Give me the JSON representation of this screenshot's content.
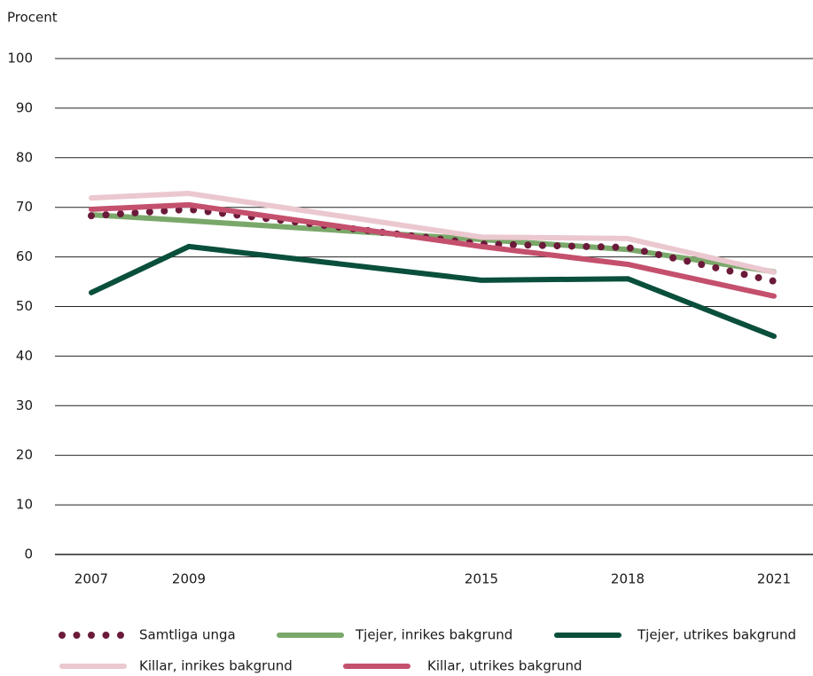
{
  "chart_data": {
    "type": "line",
    "y_label": "Procent",
    "x": [
      2007,
      2009,
      2015,
      2018,
      2021
    ],
    "xlim": [
      2007,
      2021
    ],
    "xticks": [
      2007,
      2009,
      2015,
      2018,
      2021
    ],
    "ylim": [
      0,
      100
    ],
    "yticks": [
      0,
      10,
      20,
      30,
      40,
      50,
      60,
      70,
      80,
      90,
      100
    ],
    "grid": true,
    "legend": "bottom",
    "series": [
      {
        "name": "Samtliga unga",
        "color": "#6b1a3a",
        "style": "dotted",
        "values": [
          68.3,
          69.6,
          62.6,
          61.9,
          55.1
        ]
      },
      {
        "name": "Tjejer, inrikes bakgrund",
        "color": "#7aa86a",
        "style": "solid",
        "values": [
          68.5,
          67.3,
          63.5,
          61.5,
          57.0
        ]
      },
      {
        "name": "Tjejer, utrikes bakgrund",
        "color": "#0a4f3c",
        "style": "solid",
        "values": [
          52.8,
          62.1,
          55.3,
          55.6,
          44.0
        ]
      },
      {
        "name": "Killar, inrikes bakgrund",
        "color": "#ebc8cf",
        "style": "solid",
        "values": [
          71.9,
          72.8,
          64.0,
          63.7,
          56.9
        ]
      },
      {
        "name": "Killar, utrikes bakgrund",
        "color": "#c4506e",
        "style": "solid",
        "values": [
          69.6,
          70.5,
          62.1,
          58.5,
          52.1
        ]
      }
    ]
  }
}
